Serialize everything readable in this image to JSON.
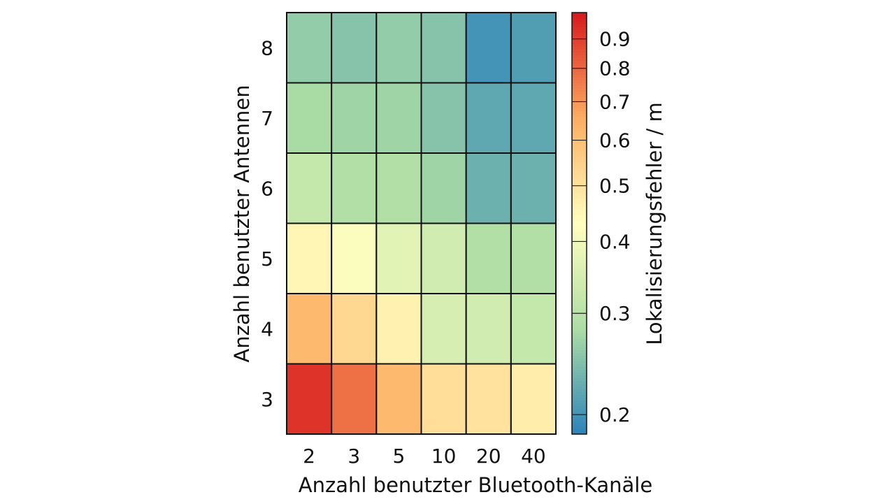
{
  "chart_data": {
    "type": "heatmap",
    "title": "",
    "xlabel": "Anzahl benutzter Bluetooth-Kanäle",
    "ylabel": "Anzahl benutzter Antennen",
    "x_categories": [
      "2",
      "3",
      "5",
      "10",
      "20",
      "40"
    ],
    "y_categories": [
      "8",
      "7",
      "6",
      "5",
      "4",
      "3"
    ],
    "values": [
      [
        0.26,
        0.25,
        0.26,
        0.25,
        0.2,
        0.21
      ],
      [
        0.28,
        0.27,
        0.27,
        0.25,
        0.22,
        0.22
      ],
      [
        0.32,
        0.29,
        0.29,
        0.27,
        0.23,
        0.23
      ],
      [
        0.45,
        0.42,
        0.37,
        0.34,
        0.29,
        0.29
      ],
      [
        0.62,
        0.53,
        0.46,
        0.35,
        0.34,
        0.32
      ],
      [
        0.93,
        0.78,
        0.62,
        0.51,
        0.5,
        0.47
      ]
    ],
    "colorbar": {
      "label": "Lokalisierungsfehler / m",
      "scale": "log",
      "range": [
        0.185,
        1.0
      ],
      "ticks": [
        0.2,
        0.3,
        0.4,
        0.5,
        0.6,
        0.7,
        0.8,
        0.9
      ],
      "tick_labels": [
        "0.2",
        "0.3",
        "0.4",
        "0.5",
        "0.6",
        "0.7",
        "0.8",
        "0.9"
      ],
      "colors": [
        "#2b83ba",
        "#abdda4",
        "#ffffbf",
        "#fdae61",
        "#d7191c"
      ]
    },
    "grid": false,
    "legend": "none"
  }
}
